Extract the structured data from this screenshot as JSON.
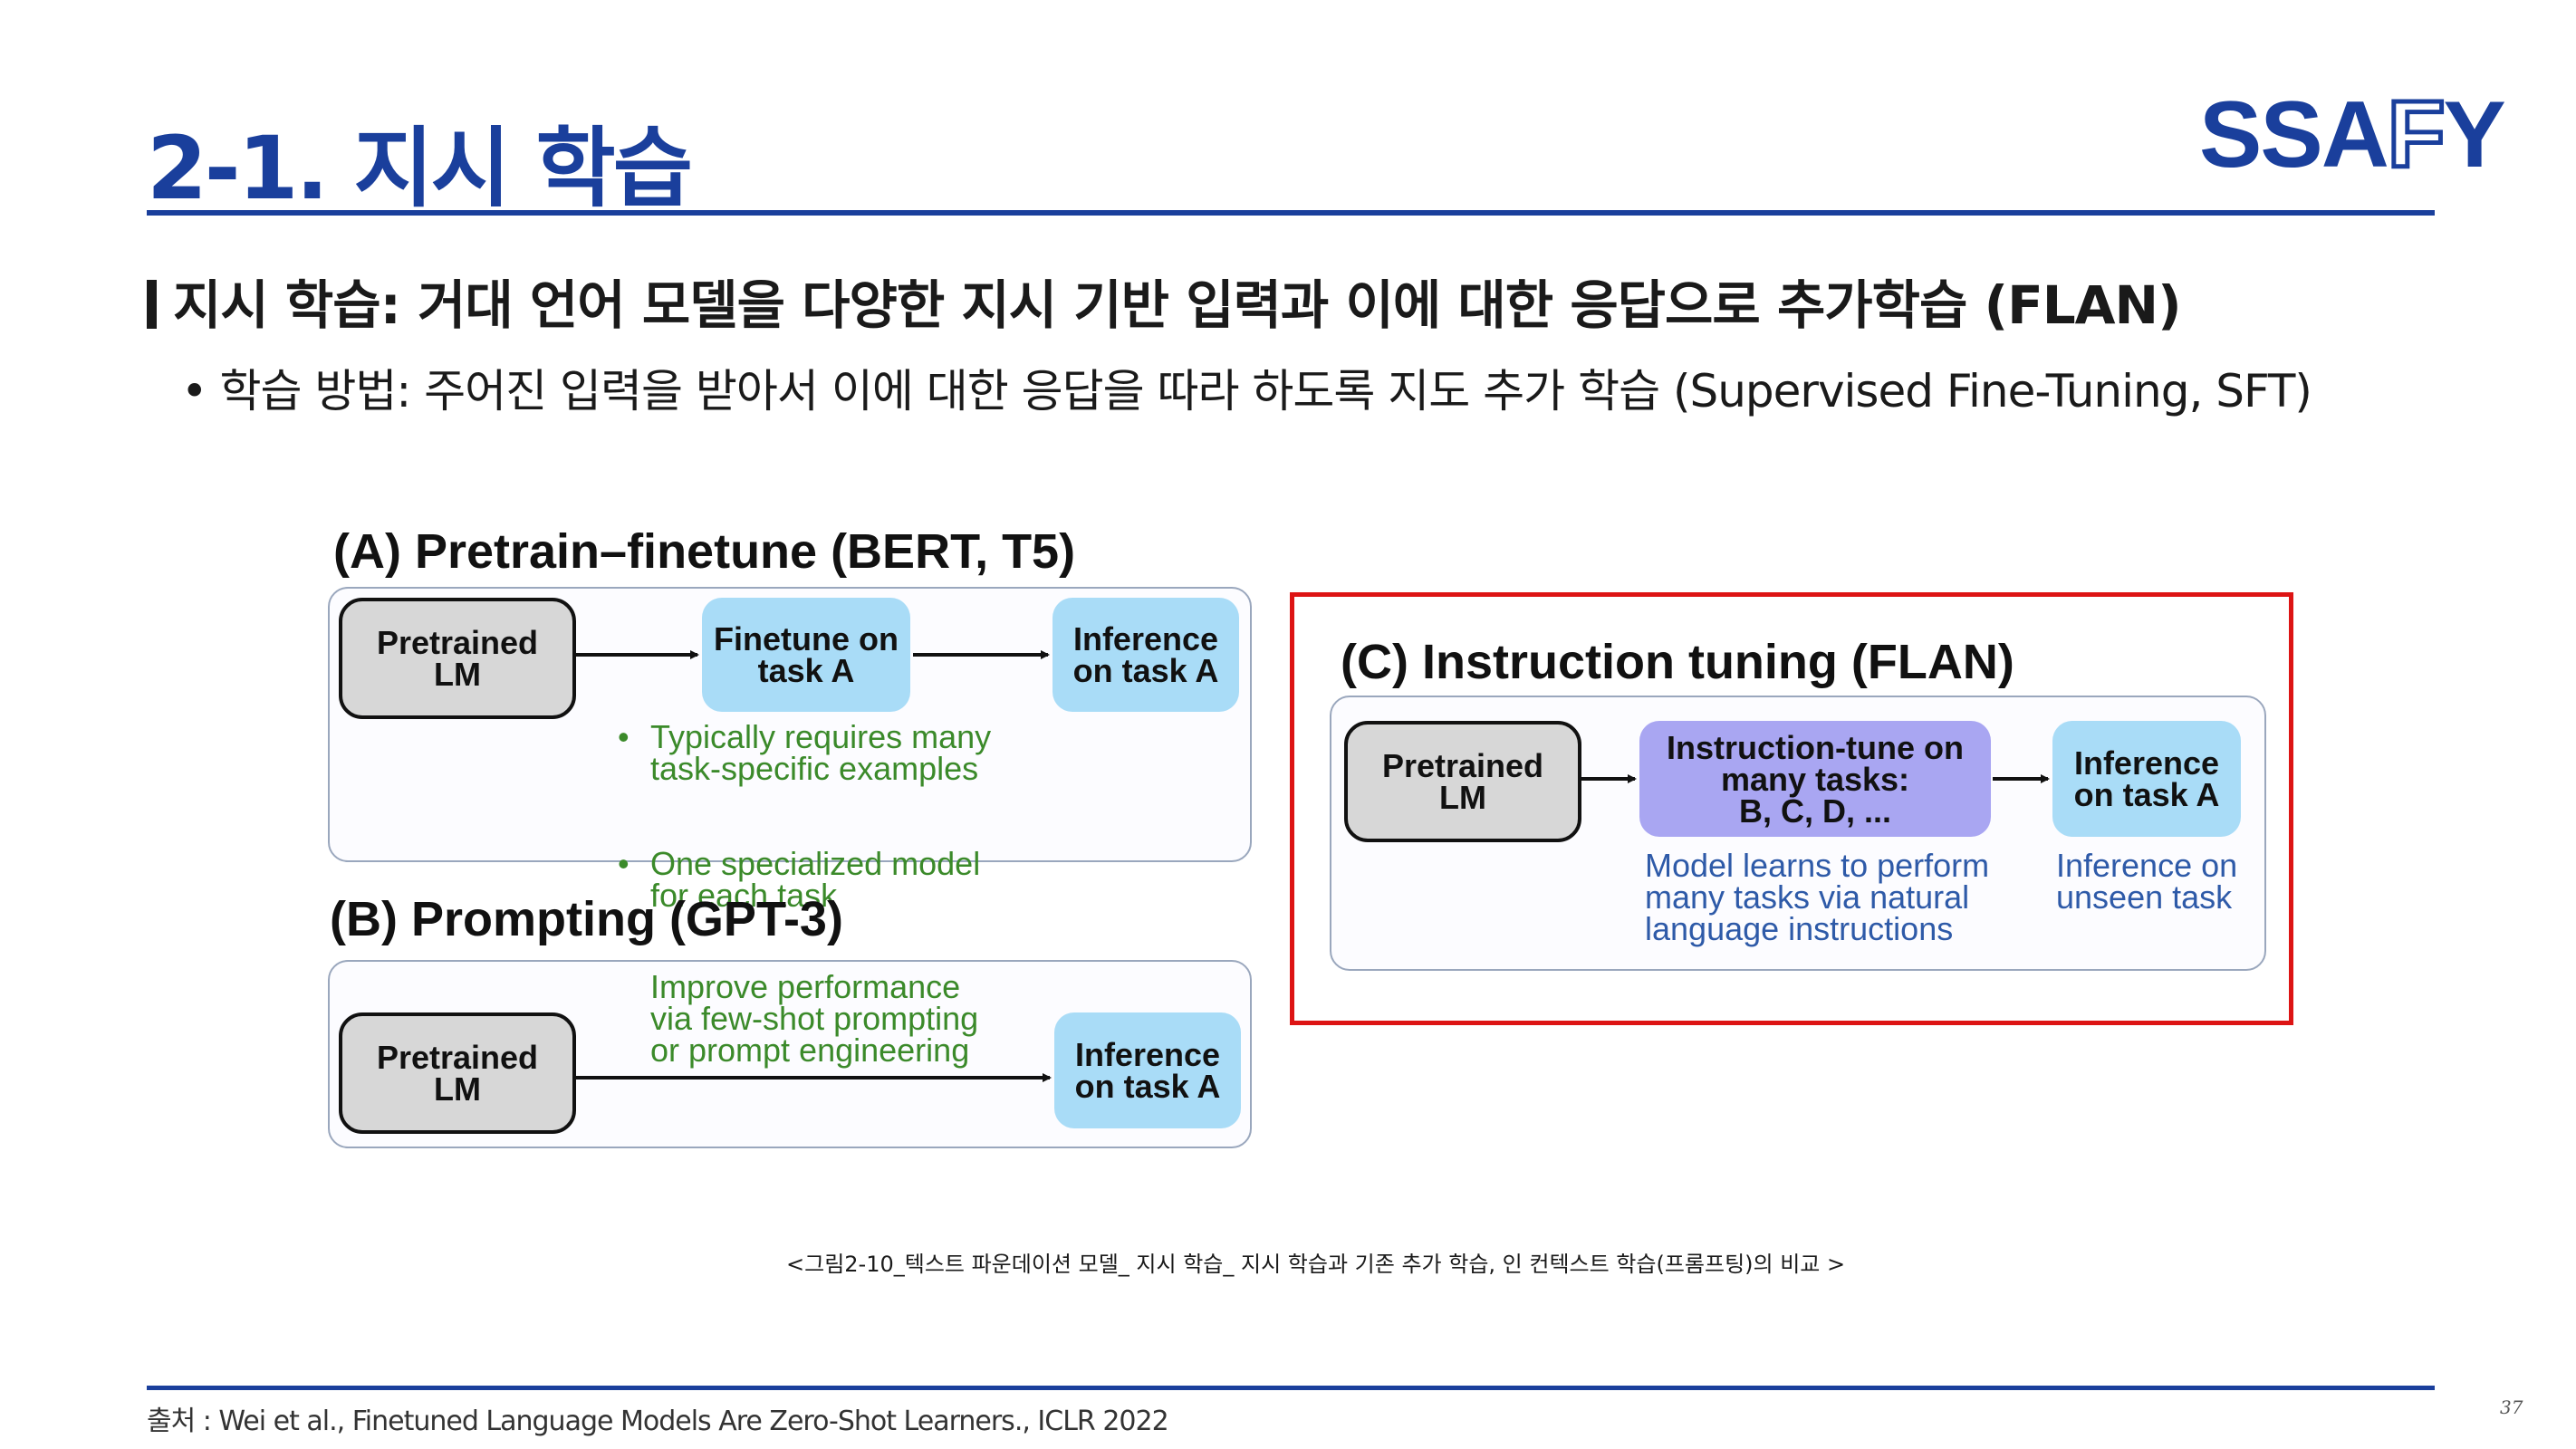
{
  "slide": {
    "title": "2-1. 지시 학습",
    "logo_part1": "SSA",
    "logo_part2": "F",
    "logo_part3": "Y",
    "heading": "지시 학습: 거대 언어 모델을 다양한 지시 기반 입력과 이에 대한 응답으로 추가학습 (FLAN)",
    "bullet_symbol": "•",
    "bullet": "학습 방법: 주어진 입력을 받아서 이에 대한 응답을 따라 하도록 지도 추가 학습 (Supervised Fine-Tuning, SFT)",
    "caption": "<그림2-10_텍스트 파운데이션 모델_ 지시 학습_ 지시 학습과 기존 추가 학습, 인 컨텍스트 학습(프롬프팅)의 비교 >",
    "source": "출처 : Wei et al., Finetuned Language Models Are Zero-Shot Learners., ICLR 2022",
    "page_number": "37"
  },
  "figure": {
    "panel_a": {
      "title": "(A) Pretrain–finetune (BERT, T5)",
      "box1": "Pretrained\nLM",
      "box2": "Finetune on\ntask A",
      "box3": "Inference\non task A",
      "note1": "Typically requires many\ntask-specific examples",
      "note2": "One specialized model\nfor each task"
    },
    "panel_b": {
      "title": "(B) Prompting (GPT-3)",
      "box1": "Pretrained\nLM",
      "note": "Improve performance\nvia few-shot prompting\nor prompt engineering",
      "box2": "Inference\non task A"
    },
    "panel_c": {
      "title": "(C) Instruction tuning (FLAN)",
      "box1": "Pretrained\nLM",
      "box2": "Instruction-tune on\nmany tasks:\nB, C, D, ...",
      "box3": "Inference\non task A",
      "note1": "Model learns to perform\nmany tasks via natural\nlanguage instructions",
      "note2": "Inference on\nunseen task"
    }
  },
  "colors": {
    "brand_blue": "#1a3f9c",
    "highlight_red": "#dd1414",
    "box_blue": "#a9dcf7",
    "box_purple": "#a9a6f2",
    "box_gray": "#d7d7d7",
    "note_green": "#3b8a2a",
    "note_blue": "#2e5aa8"
  }
}
